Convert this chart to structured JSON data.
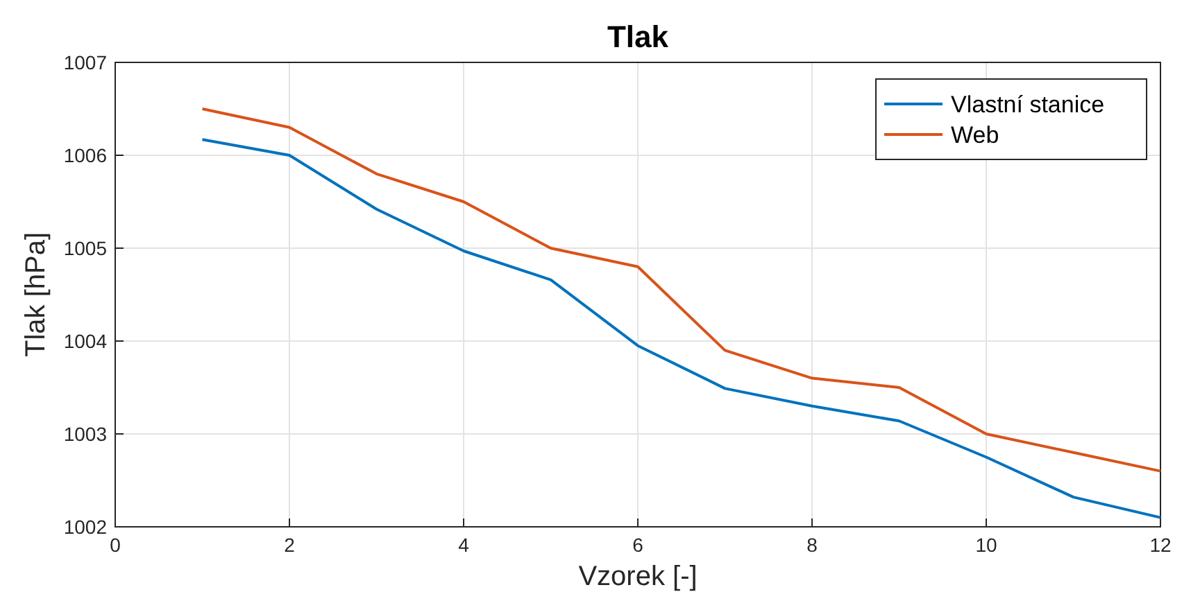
{
  "chart_data": {
    "type": "line",
    "title": "Tlak",
    "xlabel": "Vzorek [-]",
    "ylabel": "Tlak [hPa]",
    "x": [
      1,
      2,
      3,
      4,
      5,
      6,
      7,
      8,
      9,
      10,
      11,
      12
    ],
    "series": [
      {
        "name": "Vlastní stanice",
        "color": "#0072bd",
        "values": [
          1006.17,
          1006.0,
          1005.42,
          1004.97,
          1004.66,
          1003.95,
          1003.49,
          1003.3,
          1003.14,
          1002.75,
          1002.32,
          1002.1
        ]
      },
      {
        "name": "Web",
        "color": "#d95319",
        "values": [
          1006.5,
          1006.3,
          1005.8,
          1005.5,
          1005.0,
          1004.8,
          1003.9,
          1003.6,
          1003.5,
          1003.0,
          1002.8,
          1002.6
        ]
      }
    ],
    "xlim": [
      0,
      12
    ],
    "xticks": [
      0,
      2,
      4,
      6,
      8,
      10,
      12
    ],
    "ylim": [
      1002,
      1007
    ],
    "yticks": [
      1002,
      1003,
      1004,
      1005,
      1006,
      1007
    ],
    "grid": true,
    "legend": "top right",
    "marker": "none",
    "line_style": "solid"
  }
}
